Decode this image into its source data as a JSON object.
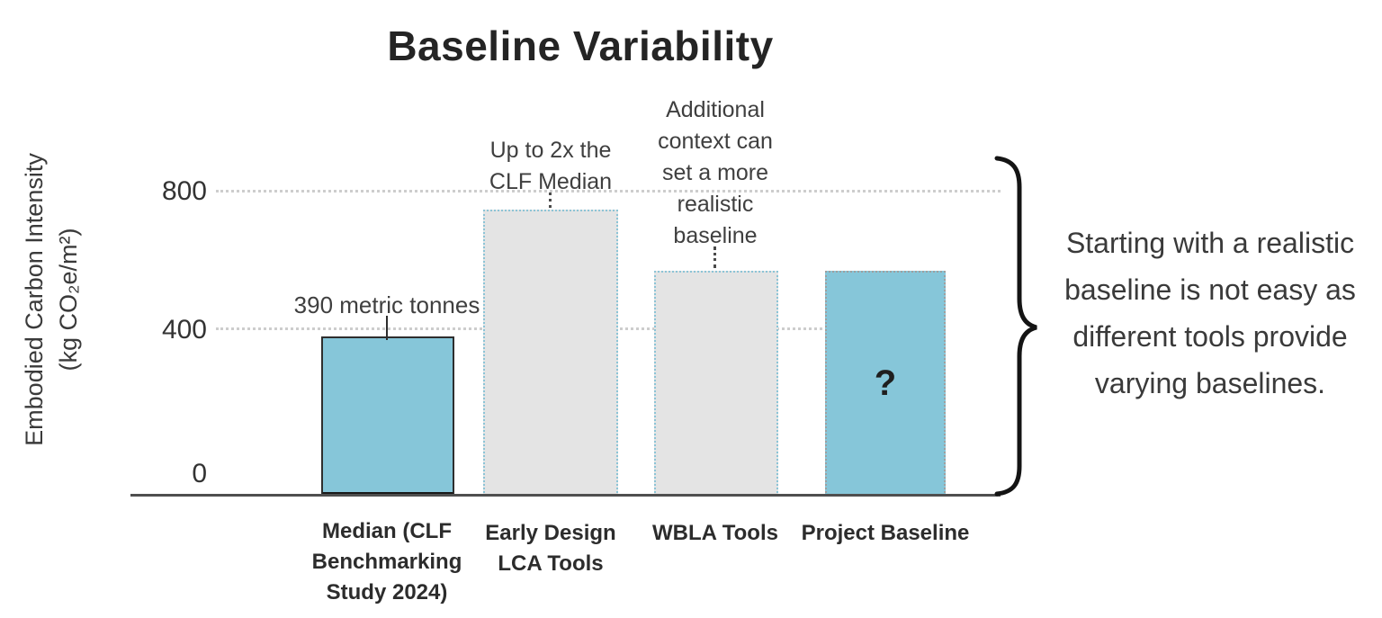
{
  "side_note": {
    "text": "Starting with a\nrealistic baseline is\nnot easy as different\ntools provide varying\nbaselines."
  },
  "chart_data": {
    "type": "bar",
    "title": "Baseline Variability",
    "y_axis_label_line1": "Embodied Carbon Intensity",
    "y_axis_label_line2": "(kg CO₂e/m²)",
    "ylabel": "Embodied Carbon Intensity (kg CO2e/m2)",
    "xlabel": "",
    "ylim": [
      0,
      860
    ],
    "yticks": [
      "800",
      "400",
      "0"
    ],
    "grid": "horizontal dotted gridlines at 400 and 800",
    "legend_position": "none",
    "categories": [
      "Median (CLF Benchmarking Study 2024)",
      "Early Design LCA Tools",
      "WBLA Tools",
      "Project Baseline"
    ],
    "values": [
      390,
      750,
      575,
      575
    ],
    "colors": {
      "teal": "#86c6d9",
      "gray": "#e4e4e4",
      "teal_dotted_border": "#8cc4d6",
      "gray_dotted_border": "#9f9f9f",
      "dark_border": "#2e2e2e",
      "grid_dots": "#cdcdcd",
      "axis": "#4f4f4f",
      "text": "#3a3a3a"
    },
    "bars": [
      {
        "label_display": "Median (CLF\nBenchmarking\nStudy 2024)",
        "value": 390,
        "fill": "teal",
        "border": "solid-dark",
        "annotation": "390 metric tonnes"
      },
      {
        "label_display": "Early Design\nLCA Tools",
        "value": 750,
        "fill": "gray",
        "border": "dotted-teal",
        "annotation": "Up to 2x the\nCLF Median"
      },
      {
        "label_display": "WBLA Tools",
        "value": 575,
        "fill": "gray",
        "border": "dotted-teal",
        "annotation": "Additional\ncontext can\nset a more\nrealistic\nbaseline"
      },
      {
        "label_display": "Project Baseline",
        "value": 575,
        "fill": "teal",
        "border": "dotted-gray",
        "inner_label": "?"
      }
    ]
  }
}
